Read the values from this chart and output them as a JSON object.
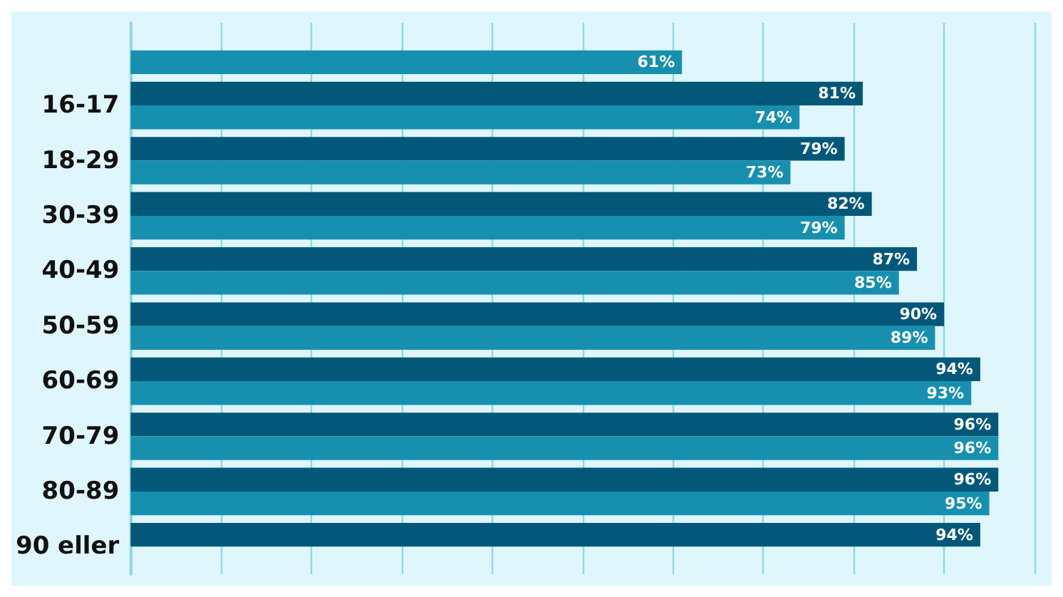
{
  "chart_data": {
    "type": "bar",
    "orientation": "horizontal",
    "categories": [
      null,
      "16-17",
      "18-29",
      "30-39",
      "40-49",
      "50-59",
      "60-69",
      "70-79",
      "80-89",
      "90 eller"
    ],
    "series": [
      {
        "color": "#03587a",
        "values": [
          null,
          81,
          79,
          82,
          87,
          90,
          94,
          96,
          96,
          94
        ],
        "value_labels": [
          null,
          "81%",
          "79%",
          "82%",
          "87%",
          "90%",
          "94%",
          "96%",
          "96%",
          "94%"
        ]
      },
      {
        "color": "#1790b0",
        "values": [
          61,
          74,
          73,
          79,
          85,
          89,
          93,
          96,
          95,
          null
        ],
        "value_labels": [
          "61%",
          "74%",
          "73%",
          "79%",
          "85%",
          "89%",
          "93%",
          "96%",
          "95%",
          null
        ]
      }
    ],
    "xticks": [
      {
        "value": 0,
        "label": null
      },
      {
        "value": 10,
        "label": null
      },
      {
        "value": 20,
        "label": null
      },
      {
        "value": 30,
        "label": null
      },
      {
        "value": 40,
        "label": null
      },
      {
        "value": 50,
        "label": null
      },
      {
        "value": 60,
        "label": null
      },
      {
        "value": 70,
        "label": null
      },
      {
        "value": 80,
        "label": null
      },
      {
        "value": 90,
        "label": null
      },
      {
        "value": 100,
        "label": null
      }
    ],
    "xlim": [
      0,
      100
    ],
    "tick_labels": "y",
    "grid": "x"
  }
}
